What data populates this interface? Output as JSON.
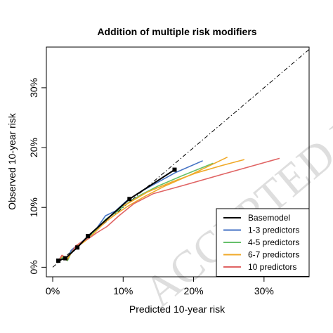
{
  "watermark": "ACCEPTED MANUSCRIPT",
  "chart_data": {
    "type": "line",
    "title": "Addition of multiple risk modifiers",
    "xlabel": "Predicted 10-year risk",
    "ylabel": "Observed 10-year risk",
    "xlim": [
      -0.9,
      36.4
    ],
    "ylim": [
      -1.6,
      36.8
    ],
    "xticks": [
      0,
      10,
      20,
      30
    ],
    "yticks": [
      0,
      10,
      20,
      30
    ],
    "xtick_labels": [
      "0%",
      "10%",
      "20%",
      "30%"
    ],
    "ytick_labels": [
      "0%",
      "10%",
      "20%",
      "30%"
    ],
    "grid": false,
    "legend_position": "bottom-right",
    "reference_line": {
      "style": "dashdot",
      "from": [
        0,
        0
      ],
      "to": [
        36.4,
        36.4
      ]
    },
    "series": [
      {
        "name": "Basemodel",
        "color": "#000000",
        "markers": true,
        "x": [
          0.8,
          1.8,
          3.5,
          5.0,
          10.9,
          17.3
        ],
        "y": [
          1.1,
          1.5,
          3.3,
          5.2,
          11.4,
          16.3
        ]
      },
      {
        "name": "1-3 predictors",
        "color": "#4472c4",
        "markers": false,
        "x": [
          0.8,
          1.4,
          2.1,
          2.6,
          3.4,
          4.3,
          5.2,
          6.3,
          7.5,
          8.9,
          10.4,
          12.3,
          14.6,
          17.4,
          21.3
        ],
        "y": [
          1.0,
          1.7,
          1.2,
          2.8,
          3.6,
          4.4,
          5.4,
          6.6,
          8.6,
          9.4,
          11.0,
          12.5,
          14.0,
          15.8,
          17.8
        ]
      },
      {
        "name": "4-5 predictors",
        "color": "#66c06a",
        "markers": false,
        "x": [
          0.8,
          1.4,
          2.1,
          2.7,
          3.4,
          4.3,
          5.2,
          6.3,
          7.5,
          8.9,
          10.5,
          12.5,
          15.0,
          18.2,
          22.8
        ],
        "y": [
          1.0,
          1.6,
          1.1,
          2.6,
          3.4,
          4.2,
          5.0,
          6.4,
          8.0,
          9.1,
          10.6,
          12.1,
          13.6,
          15.2,
          17.4
        ]
      },
      {
        "name": "6-7 predictors",
        "color": "#f0a928",
        "markers": false,
        "x": [
          0.8,
          1.4,
          2.0,
          2.7,
          3.4,
          4.2,
          5.2,
          6.3,
          7.5,
          9.0,
          10.8,
          13.0,
          15.8,
          19.5,
          24.8
        ],
        "y": [
          1.1,
          1.9,
          1.2,
          2.5,
          3.6,
          4.0,
          4.9,
          6.2,
          7.6,
          8.9,
          10.3,
          11.8,
          13.5,
          15.4,
          18.4
        ]
      },
      {
        "name": "6-7 predictors (2)",
        "legend": false,
        "color": "#f0a928",
        "markers": false,
        "x": [
          10.0,
          13.5,
          17.0,
          20.5,
          24.0,
          27.2
        ],
        "y": [
          10.2,
          12.6,
          14.3,
          15.8,
          17.0,
          18.0
        ]
      },
      {
        "name": "10 predictors",
        "color": "#e06464",
        "markers": false,
        "x": [
          0.8,
          1.3,
          1.9,
          2.6,
          3.3,
          4.2,
          5.1,
          6.3,
          7.7,
          9.4,
          11.5,
          14.3,
          18.3,
          24.0,
          32.2
        ],
        "y": [
          1.0,
          2.0,
          1.6,
          2.3,
          3.6,
          4.3,
          4.8,
          5.8,
          6.8,
          8.6,
          10.6,
          12.3,
          13.6,
          15.5,
          18.2
        ]
      }
    ]
  }
}
